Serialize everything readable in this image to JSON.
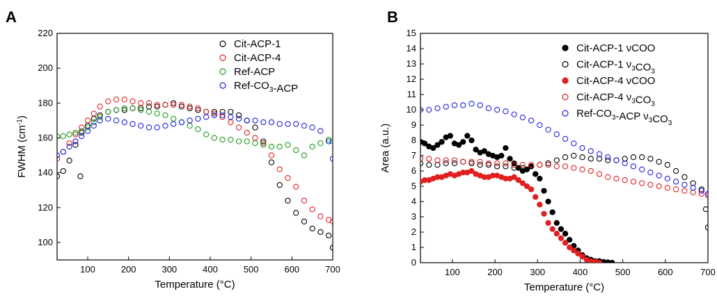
{
  "panels": [
    {
      "label": "A"
    },
    {
      "label": "B"
    }
  ],
  "chart_data": [
    {
      "type": "scatter",
      "panel": "A",
      "xlabel": "Temperature (°C)",
      "ylabel_main": "FWHM (cm",
      "ylabel_sup": "-1",
      "ylabel_end": ")",
      "xlim": [
        25,
        700
      ],
      "ylim": [
        90,
        220
      ],
      "xticks": [
        100,
        200,
        300,
        400,
        500,
        600,
        700
      ],
      "yticks": [
        100,
        120,
        140,
        160,
        180,
        200,
        220
      ],
      "grid": false,
      "legend_position": "top-right",
      "series": [
        {
          "name": "Cit-ACP-1",
          "name_parts": [
            "Cit-ACP-1"
          ],
          "color": "#000000",
          "marker": "open-circle",
          "x": [
            25,
            40,
            55,
            70,
            85,
            100,
            115,
            130,
            150,
            170,
            190,
            210,
            230,
            250,
            270,
            290,
            310,
            330,
            350,
            370,
            390,
            410,
            430,
            450,
            470,
            490,
            510,
            530,
            550,
            570,
            590,
            610,
            630,
            650,
            670,
            690,
            700
          ],
          "y": [
            138,
            141,
            147,
            156,
            163,
            167,
            171,
            173,
            175,
            176,
            176,
            177,
            177,
            178,
            178,
            179,
            180,
            178,
            177,
            176,
            175,
            175,
            175,
            175,
            173,
            170,
            166,
            158,
            146,
            133,
            124,
            117,
            112,
            108,
            106,
            104,
            97
          ]
        },
        {
          "name": "Cit-ACP-4",
          "name_parts": [
            "Cit-ACP-4"
          ],
          "color": "#e02020",
          "marker": "open-circle",
          "x": [
            25,
            40,
            55,
            70,
            85,
            100,
            115,
            130,
            150,
            170,
            190,
            210,
            230,
            250,
            270,
            290,
            310,
            330,
            350,
            370,
            390,
            410,
            430,
            450,
            470,
            490,
            510,
            530,
            550,
            570,
            590,
            610,
            630,
            650,
            670,
            690,
            700
          ],
          "y": [
            148,
            152,
            157,
            162,
            166,
            170,
            174,
            178,
            181,
            182,
            182,
            181,
            180,
            180,
            179,
            179,
            179,
            179,
            178,
            177,
            175,
            174,
            172,
            169,
            166,
            163,
            160,
            157,
            150,
            142,
            137,
            132,
            124,
            119,
            115,
            113,
            112
          ]
        },
        {
          "name": "Ref-ACP",
          "name_parts": [
            "Ref-ACP"
          ],
          "color": "#1f9a1f",
          "marker": "open-circle",
          "x": [
            25,
            40,
            55,
            70,
            85,
            100,
            115,
            130,
            150,
            170,
            190,
            210,
            230,
            250,
            270,
            290,
            310,
            330,
            350,
            370,
            390,
            410,
            430,
            450,
            470,
            490,
            510,
            530,
            550,
            570,
            590,
            610,
            630,
            650,
            670,
            690,
            700
          ],
          "y": [
            161,
            161,
            162,
            163,
            164,
            166,
            169,
            172,
            175,
            176,
            177,
            177,
            176,
            175,
            174,
            173,
            171,
            169,
            167,
            165,
            162,
            160,
            159,
            159,
            158,
            158,
            157,
            156,
            155,
            155,
            156,
            153,
            150,
            155,
            157,
            159,
            158
          ]
        },
        {
          "name": "Ref-CO3-ACP",
          "name_parts": [
            "Ref-CO",
            "3",
            "-ACP"
          ],
          "color": "#2020e0",
          "marker": "open-circle",
          "x": [
            25,
            40,
            55,
            70,
            85,
            100,
            115,
            130,
            150,
            170,
            190,
            210,
            230,
            250,
            270,
            290,
            310,
            330,
            350,
            370,
            390,
            410,
            430,
            450,
            470,
            490,
            510,
            530,
            550,
            570,
            590,
            610,
            630,
            650,
            670,
            690,
            700
          ],
          "y": [
            150,
            152,
            155,
            158,
            161,
            164,
            167,
            170,
            171,
            170,
            169,
            168,
            167,
            166,
            166,
            167,
            168,
            169,
            170,
            171,
            172,
            173,
            173,
            172,
            171,
            170,
            170,
            169,
            169,
            168,
            168,
            168,
            167,
            166,
            164,
            158,
            148
          ]
        }
      ],
      "outliers": [
        {
          "series": "Cit-ACP-1",
          "x": 82,
          "y": 138
        }
      ]
    },
    {
      "type": "scatter",
      "panel": "B",
      "xlabel": "Temperature (°C)",
      "ylabel": "Area (a.u.)",
      "xlim": [
        25,
        700
      ],
      "ylim": [
        0,
        15
      ],
      "xticks": [
        100,
        200,
        300,
        400,
        500,
        600,
        700
      ],
      "yticks": [
        0,
        1,
        2,
        3,
        4,
        5,
        6,
        7,
        8,
        9,
        10,
        11,
        12,
        13,
        14,
        15
      ],
      "grid": false,
      "legend_position": "top-right",
      "series": [
        {
          "name": "Cit-ACP-1 νCOO",
          "name_parts": [
            "Cit-ACP-1 νCOO"
          ],
          "color": "#000000",
          "marker": "filled-circle",
          "x": [
            25,
            35,
            45,
            55,
            65,
            75,
            85,
            95,
            105,
            115,
            125,
            135,
            145,
            155,
            165,
            175,
            185,
            195,
            205,
            215,
            225,
            235,
            245,
            255,
            265,
            275,
            285,
            295,
            305,
            315,
            325,
            335,
            345,
            355,
            365,
            375,
            385,
            395,
            405,
            415,
            425,
            435,
            445,
            455,
            465,
            475
          ],
          "y": [
            7.9,
            7.8,
            7.6,
            7.5,
            7.7,
            7.9,
            8.2,
            8.3,
            7.8,
            7.7,
            7.9,
            8.3,
            8.0,
            7.4,
            7.2,
            7.3,
            7.1,
            7.0,
            6.9,
            7.0,
            7.5,
            6.8,
            6.5,
            6.2,
            6.0,
            6.1,
            6.3,
            5.8,
            5.5,
            4.7,
            4.0,
            3.3,
            2.6,
            2.2,
            1.9,
            1.5,
            1.1,
            0.8,
            0.5,
            0.3,
            0.2,
            0.1,
            0.1,
            0.05,
            0.02,
            0.0
          ]
        },
        {
          "name": "Cit-ACP-1 ν3CO3",
          "name_parts": [
            "Cit-ACP-1 ν",
            "3",
            "CO",
            "3"
          ],
          "color": "#000000",
          "marker": "open-circle",
          "x": [
            25,
            45,
            65,
            85,
            105,
            125,
            145,
            165,
            185,
            205,
            225,
            245,
            265,
            285,
            305,
            325,
            345,
            365,
            385,
            405,
            425,
            445,
            465,
            485,
            505,
            525,
            545,
            565,
            585,
            605,
            625,
            645,
            665,
            685,
            695,
            700
          ],
          "y": [
            6.5,
            6.4,
            6.4,
            6.5,
            6.5,
            6.6,
            6.5,
            6.4,
            6.4,
            6.3,
            6.3,
            6.2,
            6.2,
            6.3,
            6.4,
            6.5,
            6.7,
            6.9,
            7.0,
            6.9,
            6.8,
            6.8,
            6.7,
            6.7,
            6.8,
            6.9,
            6.9,
            6.8,
            6.6,
            6.4,
            6.0,
            5.6,
            5.2,
            4.8,
            3.5,
            2.3
          ]
        },
        {
          "name": "Cit-ACP-4 νCOO",
          "name_parts": [
            "Cit-ACP-4 νCOO"
          ],
          "color": "#e02020",
          "marker": "filled-circle",
          "x": [
            25,
            35,
            45,
            55,
            65,
            75,
            85,
            95,
            105,
            115,
            125,
            135,
            145,
            155,
            165,
            175,
            185,
            195,
            205,
            215,
            225,
            235,
            245,
            255,
            265,
            275,
            285,
            295,
            305,
            315,
            325,
            335,
            345,
            355,
            365,
            375,
            385,
            395,
            405,
            415,
            425,
            435,
            445
          ],
          "y": [
            5.3,
            5.4,
            5.4,
            5.5,
            5.6,
            5.6,
            5.7,
            5.8,
            5.7,
            5.8,
            5.9,
            5.9,
            6.0,
            5.8,
            5.7,
            5.6,
            5.6,
            5.7,
            5.7,
            5.6,
            5.5,
            5.5,
            5.6,
            5.4,
            5.2,
            5.0,
            4.8,
            4.3,
            3.8,
            3.2,
            2.6,
            2.2,
            1.9,
            1.6,
            1.3,
            1.0,
            0.8,
            0.6,
            0.4,
            0.2,
            0.1,
            0.05,
            0.0
          ]
        },
        {
          "name": "Cit-ACP-4 ν3CO3",
          "name_parts": [
            "Cit-ACP-4 ν",
            "3",
            "CO",
            "3"
          ],
          "color": "#e02020",
          "marker": "open-circle",
          "x": [
            25,
            45,
            65,
            85,
            105,
            125,
            145,
            165,
            185,
            205,
            225,
            245,
            265,
            285,
            305,
            325,
            345,
            365,
            385,
            405,
            425,
            445,
            465,
            485,
            505,
            525,
            545,
            565,
            585,
            605,
            625,
            645,
            665,
            685,
            700
          ],
          "y": [
            6.8,
            6.8,
            6.7,
            6.7,
            6.7,
            6.6,
            6.6,
            6.6,
            6.5,
            6.5,
            6.5,
            6.4,
            6.4,
            6.4,
            6.4,
            6.4,
            6.3,
            6.3,
            6.2,
            6.1,
            6.0,
            5.8,
            5.6,
            5.5,
            5.4,
            5.3,
            5.2,
            5.1,
            5.0,
            4.9,
            4.8,
            4.7,
            4.6,
            4.5,
            4.4
          ]
        },
        {
          "name": "Ref-CO3-ACP ν3CO3",
          "name_parts": [
            "Ref-CO",
            "3",
            "-ACP ν",
            "3",
            "CO",
            "3"
          ],
          "color": "#2020e0",
          "marker": "open-circle",
          "x": [
            25,
            45,
            65,
            85,
            105,
            125,
            145,
            165,
            185,
            205,
            225,
            245,
            265,
            285,
            305,
            325,
            345,
            365,
            385,
            405,
            425,
            445,
            465,
            485,
            505,
            525,
            545,
            565,
            585,
            605,
            625,
            645,
            665,
            685,
            700
          ],
          "y": [
            10.0,
            10.0,
            10.1,
            10.2,
            10.3,
            10.3,
            10.4,
            10.3,
            10.1,
            10.0,
            9.9,
            9.7,
            9.5,
            9.3,
            9.0,
            8.7,
            8.4,
            8.1,
            7.8,
            7.5,
            7.3,
            7.1,
            6.9,
            6.7,
            6.5,
            6.3,
            6.1,
            5.9,
            5.7,
            5.5,
            5.3,
            5.1,
            4.9,
            4.7,
            4.5
          ]
        }
      ]
    }
  ]
}
